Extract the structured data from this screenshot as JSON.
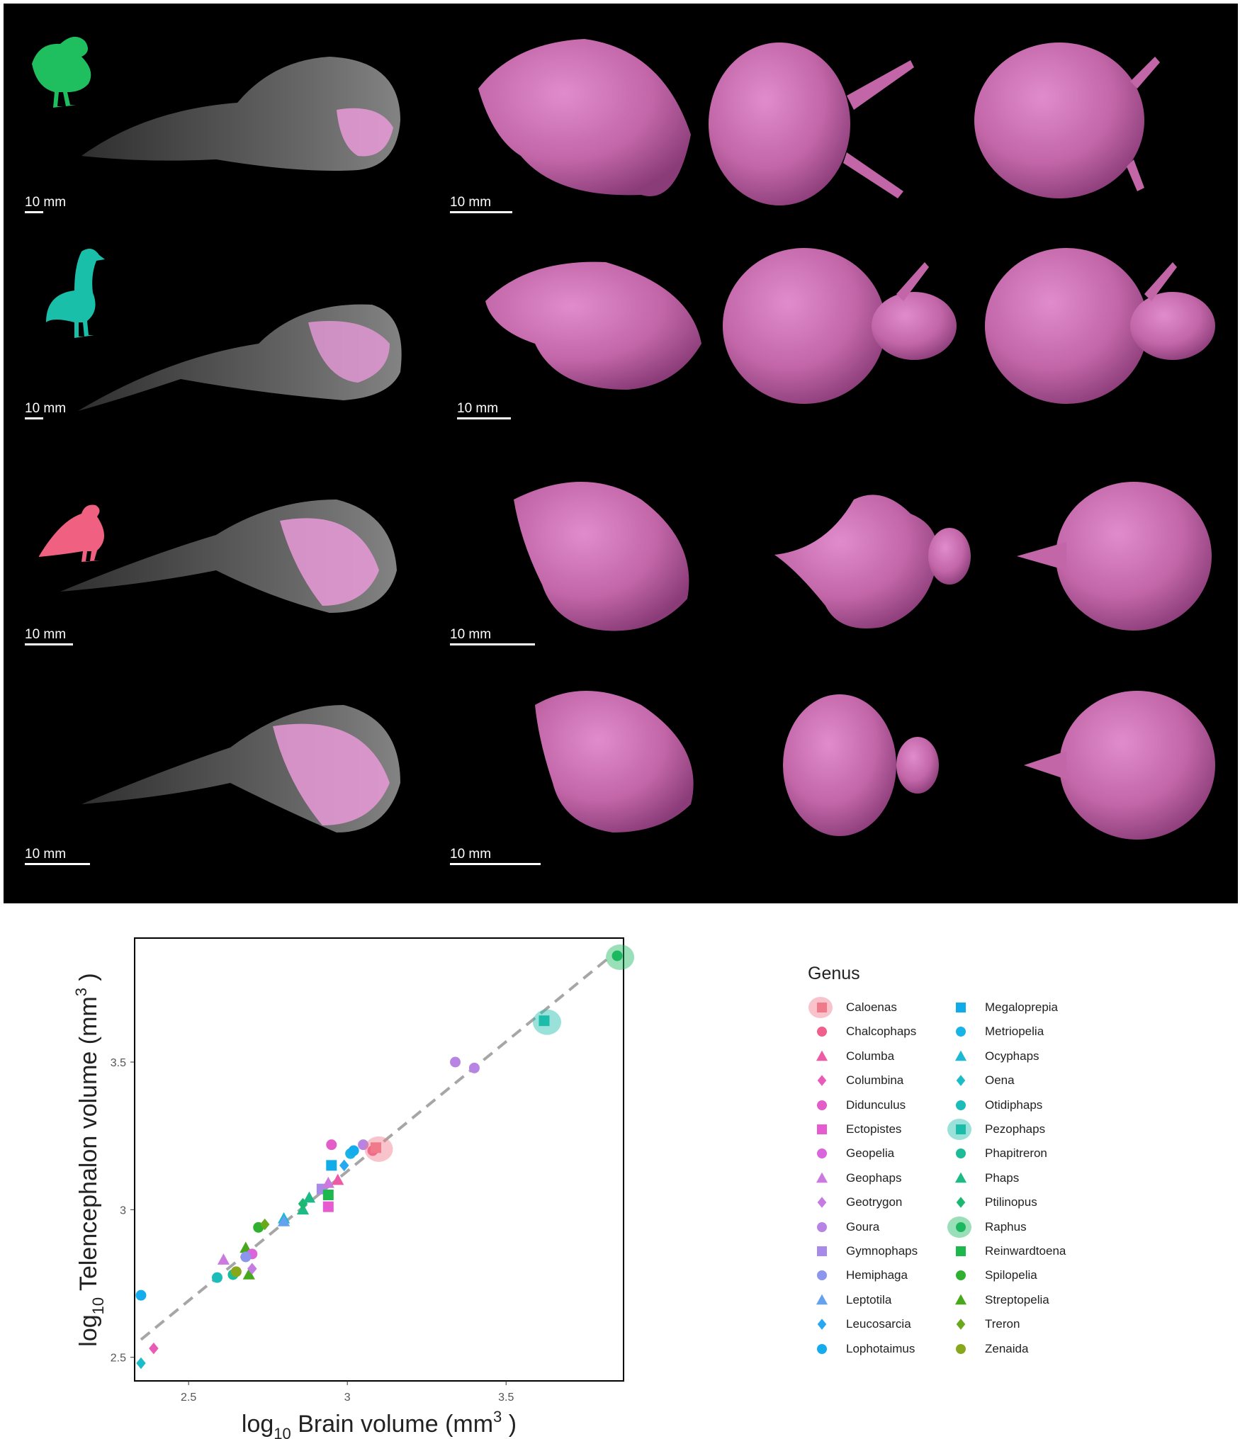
{
  "figure_panel": {
    "scale_labels": [
      "10 mm",
      "10 mm",
      "10 mm",
      "10 mm",
      "10 mm",
      "10 mm",
      "10 mm",
      "10 mm"
    ],
    "silhouette_colors": [
      "#1fbf5f",
      "#1abfaa",
      "#f06080"
    ],
    "brain_color": "#c266a8"
  },
  "chart_data": {
    "type": "scatter",
    "xlabel_main": "log",
    "xlabel_sub": "10",
    "xlabel_rest": " Brain volume (mm",
    "xlabel_sup": "3",
    "xlabel_end": " )",
    "ylabel_main": "log",
    "ylabel_sub": "10",
    "ylabel_rest": " Telencephalon volume  (mm",
    "ylabel_sup": "3",
    "ylabel_end": " )",
    "xlim": [
      2.33,
      3.87
    ],
    "ylim": [
      2.42,
      3.92
    ],
    "xticks": [
      2.5,
      3,
      3.5
    ],
    "xtick_labels": [
      "2.5",
      "3",
      "3.5"
    ],
    "yticks": [
      2.5,
      3,
      3.5
    ],
    "ytick_labels": [
      "2.5",
      "3",
      "3.5"
    ],
    "grid": false,
    "trend_line": {
      "x": [
        2.35,
        3.82
      ],
      "y": [
        2.56,
        3.85
      ],
      "style": "dashed",
      "color": "#a6a6a6"
    },
    "legend_title": "Genus",
    "legend_position": "right",
    "genera": [
      {
        "name": "Caloenas",
        "color": "#f07a8a",
        "shape": "square",
        "silhouette": "pigeon"
      },
      {
        "name": "Chalcophaps",
        "color": "#f0608a",
        "shape": "circle"
      },
      {
        "name": "Columba",
        "color": "#ec5ca6",
        "shape": "triangle"
      },
      {
        "name": "Columbina",
        "color": "#e85cb8",
        "shape": "diamond"
      },
      {
        "name": "Didunculus",
        "color": "#e45cc8",
        "shape": "circle"
      },
      {
        "name": "Ectopistes",
        "color": "#e65cd0",
        "shape": "square"
      },
      {
        "name": "Geopelia",
        "color": "#da66dc",
        "shape": "circle"
      },
      {
        "name": "Geophaps",
        "color": "#cc7ae0",
        "shape": "triangle"
      },
      {
        "name": "Geotrygon",
        "color": "#c47ce2",
        "shape": "diamond"
      },
      {
        "name": "Goura",
        "color": "#b884e4",
        "shape": "circle"
      },
      {
        "name": "Gymnophaps",
        "color": "#a88ae8",
        "shape": "square"
      },
      {
        "name": "Hemiphaga",
        "color": "#8c96ec",
        "shape": "circle"
      },
      {
        "name": "Leptotila",
        "color": "#64a2f0",
        "shape": "triangle"
      },
      {
        "name": "Leucosarcia",
        "color": "#28a8f0",
        "shape": "diamond"
      },
      {
        "name": "Lophotaimus",
        "color": "#14acec",
        "shape": "circle"
      },
      {
        "name": "Megaloprepia",
        "color": "#10acea",
        "shape": "square"
      },
      {
        "name": "Metriopelia",
        "color": "#18b4e6",
        "shape": "circle"
      },
      {
        "name": "Ocyphaps",
        "color": "#1cb8d4",
        "shape": "triangle"
      },
      {
        "name": "Oena",
        "color": "#1cbcc8",
        "shape": "diamond"
      },
      {
        "name": "Otidiphaps",
        "color": "#1cbcb8",
        "shape": "circle"
      },
      {
        "name": "Pezophaps",
        "color": "#1cbcaa",
        "shape": "square",
        "silhouette": "solitaire"
      },
      {
        "name": "Phapitreron",
        "color": "#1cbc98",
        "shape": "circle"
      },
      {
        "name": "Phaps",
        "color": "#1cba84",
        "shape": "triangle"
      },
      {
        "name": "Ptilinopus",
        "color": "#1cb870",
        "shape": "diamond"
      },
      {
        "name": "Raphus",
        "color": "#1cb860",
        "shape": "circle",
        "silhouette": "dodo"
      },
      {
        "name": "Reinwardtoena",
        "color": "#1cb84c",
        "shape": "square"
      },
      {
        "name": "Spilopelia",
        "color": "#30b030",
        "shape": "circle"
      },
      {
        "name": "Streptopelia",
        "color": "#48a81c",
        "shape": "triangle"
      },
      {
        "name": "Treron",
        "color": "#6aa81c",
        "shape": "diamond"
      },
      {
        "name": "Zenaida",
        "color": "#88a81c",
        "shape": "circle"
      }
    ],
    "points": [
      {
        "genus": "Oena",
        "x": 2.35,
        "y": 2.48
      },
      {
        "genus": "Lophotaimus",
        "x": 2.35,
        "y": 2.71
      },
      {
        "genus": "Columbina",
        "x": 2.39,
        "y": 2.53
      },
      {
        "genus": "Otidiphaps",
        "x": 2.59,
        "y": 2.77
      },
      {
        "genus": "Phapitreron",
        "x": 2.64,
        "y": 2.78
      },
      {
        "genus": "Geophaps",
        "x": 2.61,
        "y": 2.83
      },
      {
        "genus": "Zenaida",
        "x": 2.65,
        "y": 2.79
      },
      {
        "genus": "Streptopelia",
        "x": 2.68,
        "y": 2.87
      },
      {
        "genus": "Streptopelia",
        "x": 2.69,
        "y": 2.78
      },
      {
        "genus": "Geopelia",
        "x": 2.7,
        "y": 2.85
      },
      {
        "genus": "Geotrygon",
        "x": 2.7,
        "y": 2.8
      },
      {
        "genus": "Hemiphaga",
        "x": 2.68,
        "y": 2.84
      },
      {
        "genus": "Spilopelia",
        "x": 2.72,
        "y": 2.94
      },
      {
        "genus": "Treron",
        "x": 2.74,
        "y": 2.95
      },
      {
        "genus": "Ocyphaps",
        "x": 2.8,
        "y": 2.97
      },
      {
        "genus": "Leptotila",
        "x": 2.8,
        "y": 2.96
      },
      {
        "genus": "Phaps",
        "x": 2.86,
        "y": 3.0
      },
      {
        "genus": "Ptilinopus",
        "x": 2.86,
        "y": 3.02
      },
      {
        "genus": "Phaps",
        "x": 2.88,
        "y": 3.04
      },
      {
        "genus": "Gymnophaps",
        "x": 2.92,
        "y": 3.07
      },
      {
        "genus": "Geophaps",
        "x": 2.94,
        "y": 3.09
      },
      {
        "genus": "Ectopistes",
        "x": 2.94,
        "y": 3.01
      },
      {
        "genus": "Reinwardtoena",
        "x": 2.94,
        "y": 3.05
      },
      {
        "genus": "Columba",
        "x": 2.97,
        "y": 3.1
      },
      {
        "genus": "Megaloprepia",
        "x": 2.95,
        "y": 3.15
      },
      {
        "genus": "Leucosarcia",
        "x": 2.99,
        "y": 3.15
      },
      {
        "genus": "Didunculus",
        "x": 2.95,
        "y": 3.22
      },
      {
        "genus": "Metriopelia",
        "x": 3.01,
        "y": 3.19
      },
      {
        "genus": "Lophotaimus",
        "x": 3.02,
        "y": 3.2
      },
      {
        "genus": "Goura",
        "x": 3.05,
        "y": 3.22
      },
      {
        "genus": "Chalcophaps",
        "x": 3.08,
        "y": 3.2
      },
      {
        "genus": "Caloenas",
        "x": 3.09,
        "y": 3.21
      },
      {
        "genus": "Goura",
        "x": 3.34,
        "y": 3.5
      },
      {
        "genus": "Goura",
        "x": 3.4,
        "y": 3.48
      },
      {
        "genus": "Pezophaps",
        "x": 3.62,
        "y": 3.64
      },
      {
        "genus": "Raphus",
        "x": 3.85,
        "y": 3.86
      }
    ]
  }
}
